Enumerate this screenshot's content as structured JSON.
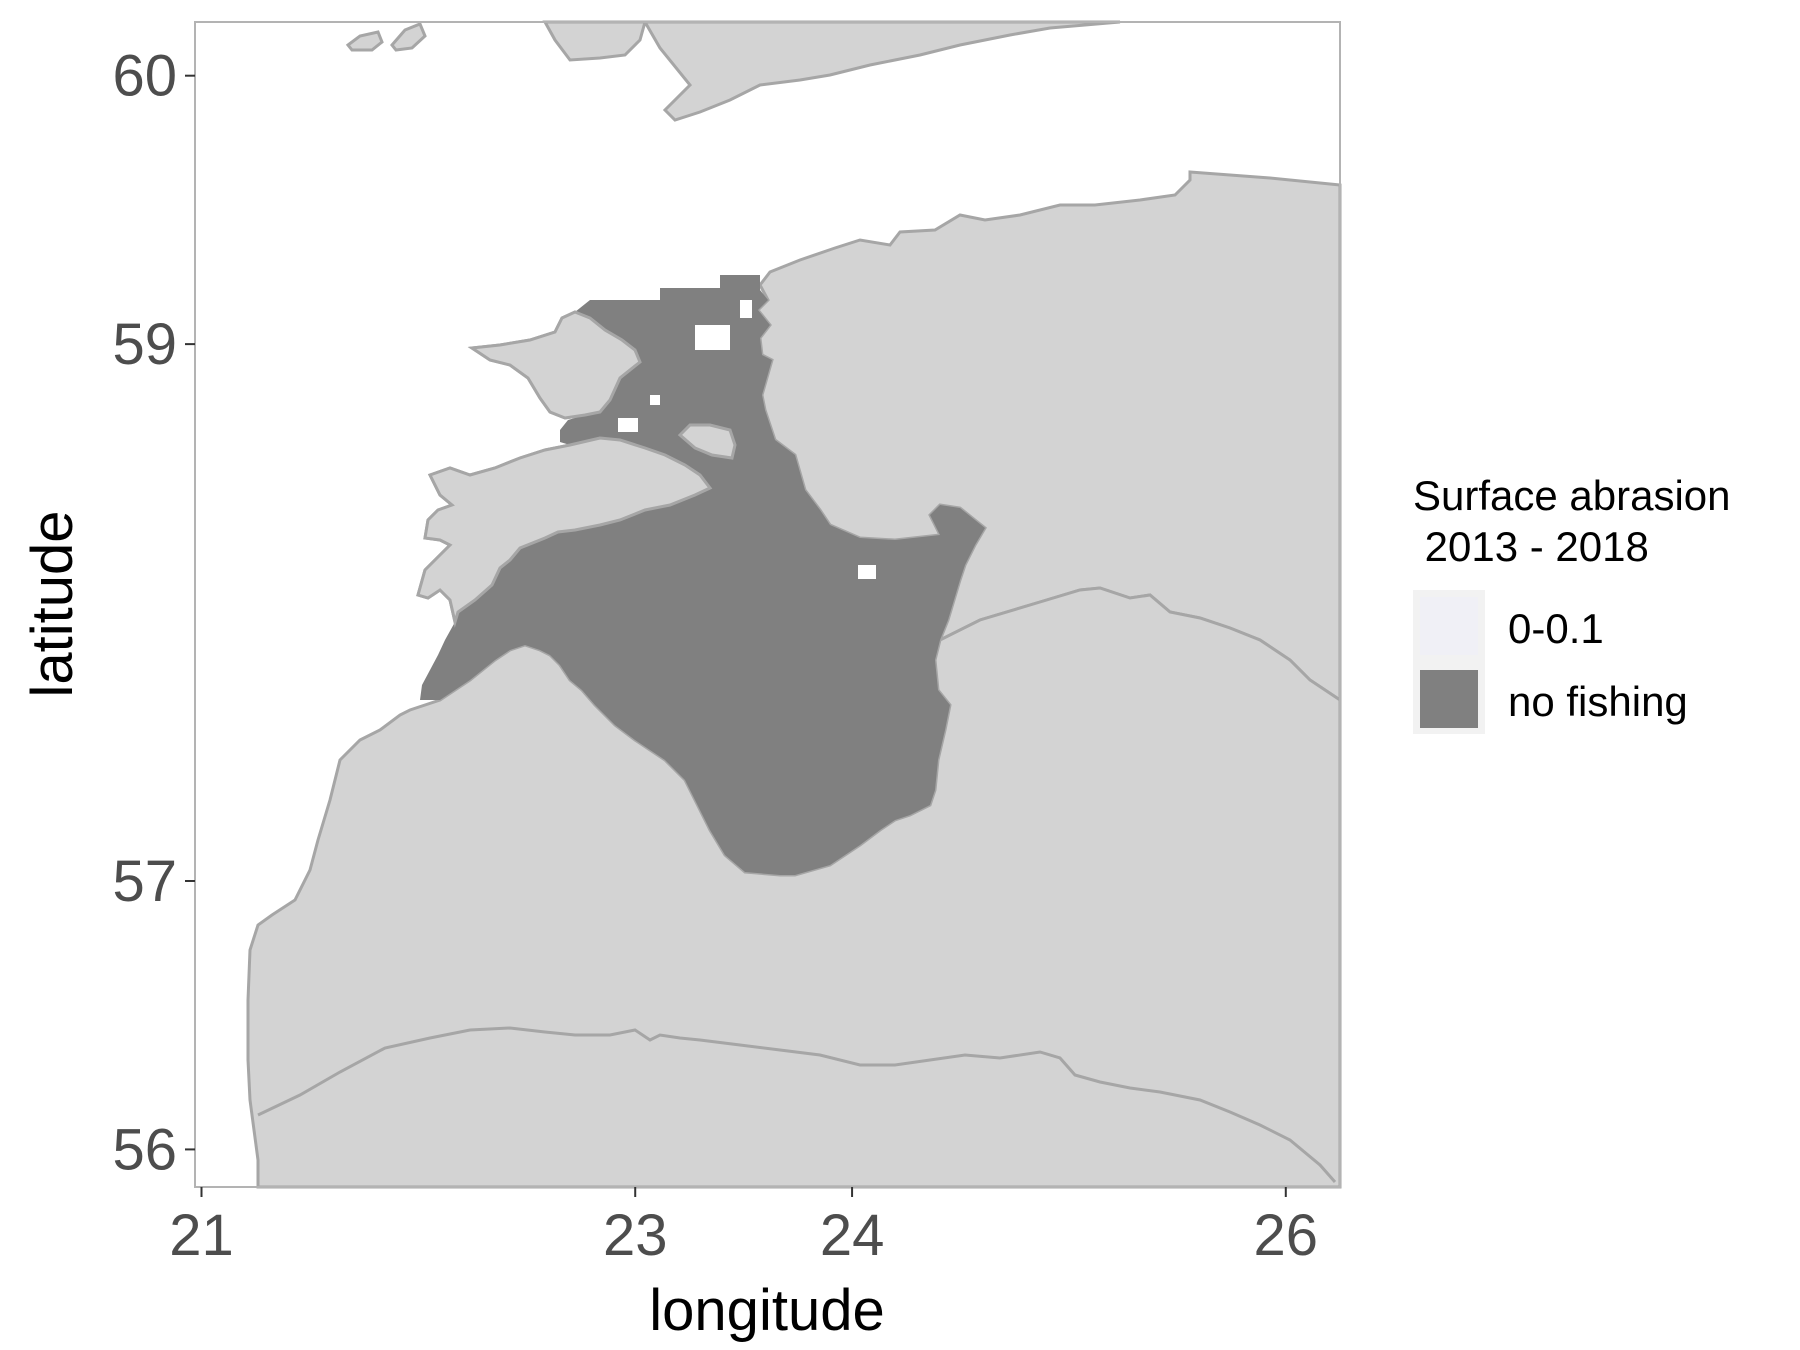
{
  "chart_data": {
    "type": "map",
    "xlabel": "longitude",
    "ylabel": "latitude",
    "x_ticks": [
      21,
      23,
      24,
      26
    ],
    "y_ticks": [
      56,
      57,
      59,
      60
    ],
    "xlim": [
      20.97,
      26.25
    ],
    "ylim": [
      55.86,
      60.2
    ],
    "legend": {
      "title_line1": "Surface abrasion",
      "title_line2": " 2013 - 2018",
      "position": "right",
      "entries": [
        {
          "label": "0-0.1",
          "color": "#f0f0f6"
        },
        {
          "label": "no fishing",
          "color": "#808080"
        }
      ]
    },
    "colors": {
      "land": "#d3d3d3",
      "coastline": "#a6a6a6",
      "no_fishing": "#808080",
      "panel_border": "#b3b3b3",
      "tick_text": "#4d4d4d",
      "axis_title": "#000000"
    }
  }
}
